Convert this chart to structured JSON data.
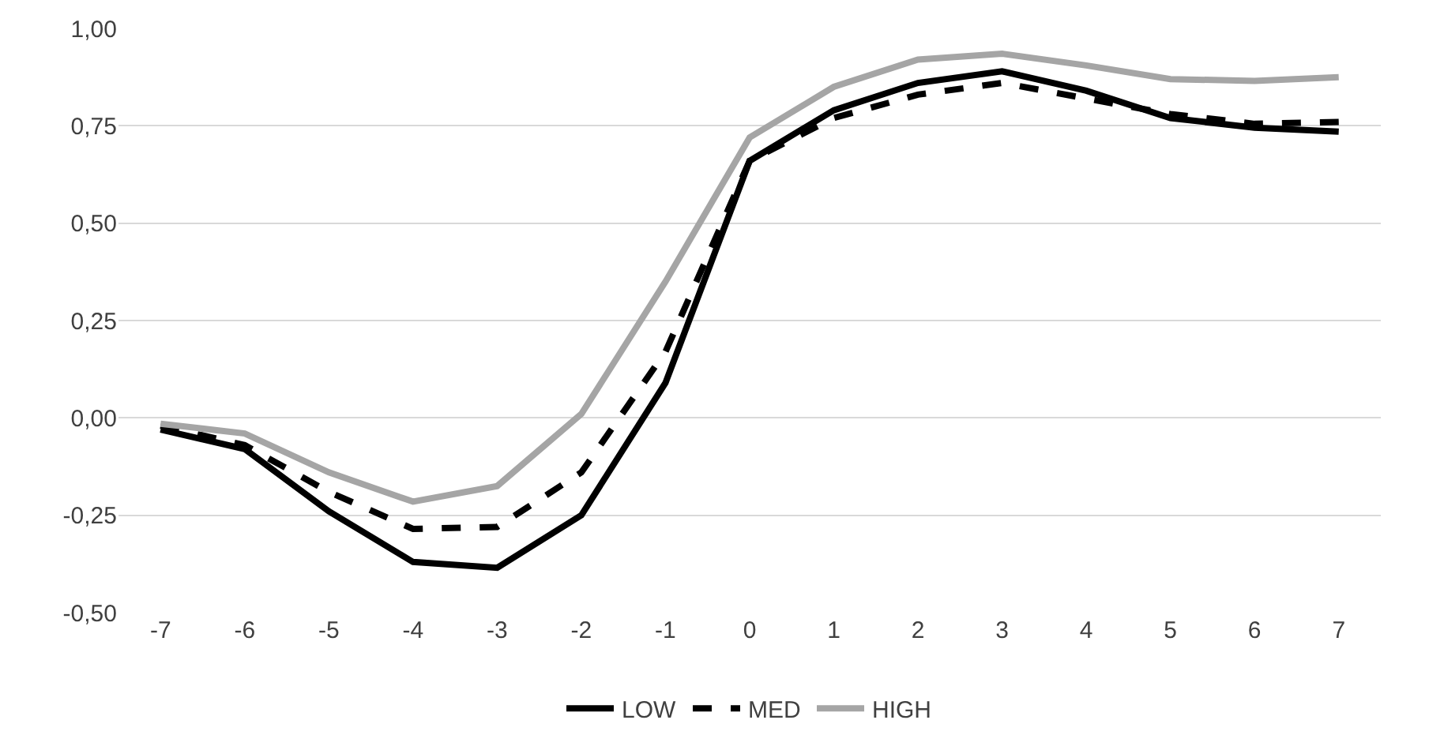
{
  "chart_data": {
    "type": "line",
    "categories": [
      "-7",
      "-6",
      "-5",
      "-4",
      "-3",
      "-2",
      "-1",
      "0",
      "1",
      "2",
      "3",
      "4",
      "5",
      "6",
      "7"
    ],
    "series": [
      {
        "name": "LOW",
        "color": "#000000",
        "line_style": "solid",
        "values": [
          -0.03,
          -0.08,
          -0.24,
          -0.37,
          -0.385,
          -0.25,
          0.09,
          0.66,
          0.79,
          0.86,
          0.89,
          0.84,
          0.77,
          0.745,
          0.735
        ]
      },
      {
        "name": "MED",
        "color": "#000000",
        "line_style": "dashed",
        "values": [
          -0.02,
          -0.07,
          -0.19,
          -0.285,
          -0.28,
          -0.14,
          0.17,
          0.66,
          0.77,
          0.83,
          0.86,
          0.82,
          0.78,
          0.755,
          0.76
        ]
      },
      {
        "name": "HIGH",
        "color": "#a5a5a5",
        "line_style": "solid",
        "values": [
          -0.015,
          -0.04,
          -0.14,
          -0.215,
          -0.175,
          0.01,
          0.35,
          0.72,
          0.85,
          0.92,
          0.935,
          0.905,
          0.87,
          0.865,
          0.875
        ]
      }
    ],
    "ylim": [
      -0.5,
      1.0
    ],
    "yticks": [
      {
        "value": -0.5,
        "label": "-0,50"
      },
      {
        "value": -0.25,
        "label": "-0,25"
      },
      {
        "value": 0,
        "label": "0,00"
      },
      {
        "value": 0.25,
        "label": "0,25"
      },
      {
        "value": 0.5,
        "label": "0,50"
      },
      {
        "value": 0.75,
        "label": "0,75"
      },
      {
        "value": 1.0,
        "label": "1,00"
      }
    ],
    "grid": "y",
    "legend": "bottom",
    "marker": "none"
  }
}
